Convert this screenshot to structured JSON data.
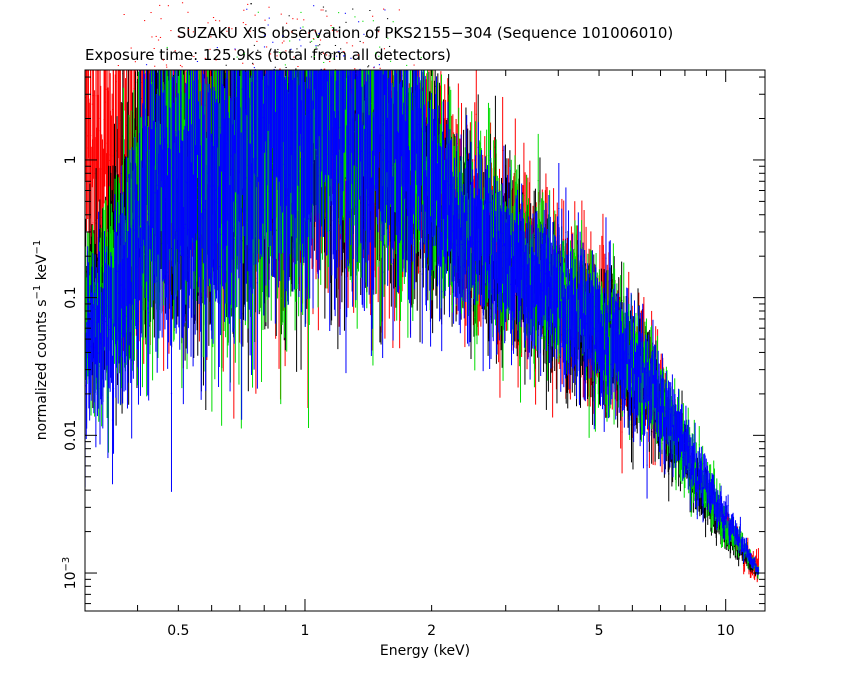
{
  "chart_data": {
    "type": "scatter",
    "title": "SUZAKU XIS observation of PKS2155−304 (Sequence 101006010)",
    "subtitle": "Exposure time: 125.9ks (total from all detectors)",
    "xlabel": "Energy (keV)",
    "ylabel_main": "normalized counts s",
    "ylabel_exp1": "−1",
    "ylabel_mid": " keV",
    "ylabel_exp2": "−1",
    "xscale": "log",
    "yscale": "log",
    "xlim": [
      0.3,
      12.4
    ],
    "ylim": [
      0.00053,
      4.5
    ],
    "xticks": [
      {
        "value": 0.5,
        "label": "0.5"
      },
      {
        "value": 1,
        "label": "1"
      },
      {
        "value": 2,
        "label": "2"
      },
      {
        "value": 5,
        "label": "5"
      },
      {
        "value": 10,
        "label": "10"
      }
    ],
    "yticks": [
      {
        "value": 1,
        "label": "1"
      },
      {
        "value": 0.1,
        "label": "0.1"
      },
      {
        "value": 0.01,
        "label": "0.01"
      }
    ],
    "ytick_exp": {
      "value": 0.001,
      "base": "10",
      "exp": "−3"
    },
    "series": [
      {
        "color": "#ff0000",
        "x": [
          0.3,
          0.33,
          0.36,
          0.4,
          0.45,
          0.5,
          0.55,
          0.6,
          0.7,
          0.8,
          0.9,
          1.0,
          1.2,
          1.5,
          1.8,
          2.0,
          2.3,
          2.7,
          3.0,
          3.5,
          4.0,
          5.0,
          6.0,
          7.0,
          8.0,
          9.0,
          10.0,
          11.0,
          12.0
        ],
        "y": [
          1.15,
          0.62,
          0.8,
          1.5,
          2.6,
          3.2,
          2.7,
          2.5,
          3.3,
          3.7,
          3.5,
          3.2,
          2.5,
          1.7,
          1.15,
          0.85,
          0.5,
          0.32,
          0.25,
          0.16,
          0.11,
          0.065,
          0.035,
          0.018,
          0.008,
          0.004,
          0.0025,
          0.0015,
          0.001
        ],
        "noise": [
          0.08,
          0.08,
          0.06,
          0.04,
          0.03,
          0.03,
          0.03,
          0.03,
          0.03,
          0.03,
          0.03,
          0.03,
          0.04,
          0.06,
          0.1,
          0.13,
          0.16,
          0.18,
          0.2,
          0.2,
          0.22,
          0.25,
          0.3,
          0.4,
          0.7,
          1.0,
          1.2,
          1.3,
          1.4
        ]
      },
      {
        "color": "#000000",
        "x": [
          0.3,
          0.33,
          0.36,
          0.4,
          0.45,
          0.48,
          0.5,
          0.53,
          0.56,
          0.6,
          0.7,
          0.8,
          0.9,
          1.0,
          1.2,
          1.5,
          1.8,
          2.0,
          2.3,
          2.7,
          3.0,
          3.5,
          4.0,
          5.0,
          6.0,
          7.0,
          8.0,
          9.0,
          10.0,
          11.0,
          12.0
        ],
        "y": [
          0.09,
          0.12,
          0.22,
          0.45,
          1.0,
          1.5,
          1.4,
          1.0,
          0.65,
          0.8,
          1.2,
          1.7,
          2.1,
          2.3,
          2.1,
          1.5,
          1.0,
          0.65,
          0.35,
          0.22,
          0.18,
          0.12,
          0.09,
          0.055,
          0.03,
          0.015,
          0.007,
          0.0035,
          0.002,
          0.0014,
          0.001
        ],
        "noise": [
          0.2,
          0.18,
          0.12,
          0.08,
          0.06,
          0.05,
          0.05,
          0.05,
          0.06,
          0.05,
          0.04,
          0.04,
          0.04,
          0.04,
          0.05,
          0.07,
          0.1,
          0.14,
          0.2,
          0.2,
          0.22,
          0.24,
          0.25,
          0.28,
          0.32,
          0.4,
          0.5,
          0.6,
          0.7,
          0.8,
          0.9
        ]
      },
      {
        "color": "#00dd00",
        "x": [
          0.3,
          0.33,
          0.36,
          0.4,
          0.45,
          0.48,
          0.5,
          0.53,
          0.56,
          0.6,
          0.7,
          0.8,
          0.9,
          1.0,
          1.2,
          1.5,
          1.8,
          2.0,
          2.3,
          2.7,
          3.0,
          3.5,
          4.0,
          5.0,
          6.0,
          7.0,
          8.0,
          9.0,
          10.0,
          11.0,
          12.0
        ],
        "y": [
          0.06,
          0.08,
          0.16,
          0.35,
          0.8,
          1.2,
          1.15,
          0.85,
          0.6,
          0.75,
          1.1,
          1.6,
          2.0,
          2.2,
          2.0,
          1.45,
          1.0,
          0.6,
          0.38,
          0.25,
          0.2,
          0.14,
          0.1,
          0.06,
          0.035,
          0.018,
          0.008,
          0.004,
          0.0022,
          0.0015,
          0.001
        ],
        "noise": [
          0.2,
          0.18,
          0.12,
          0.08,
          0.06,
          0.05,
          0.05,
          0.05,
          0.06,
          0.05,
          0.04,
          0.04,
          0.04,
          0.04,
          0.05,
          0.07,
          0.1,
          0.14,
          0.2,
          0.2,
          0.22,
          0.24,
          0.25,
          0.28,
          0.32,
          0.4,
          0.5,
          0.6,
          0.7,
          0.8,
          0.9
        ]
      },
      {
        "color": "#0000ff",
        "x": [
          0.3,
          0.33,
          0.36,
          0.4,
          0.45,
          0.48,
          0.5,
          0.53,
          0.56,
          0.6,
          0.7,
          0.8,
          0.9,
          1.0,
          1.2,
          1.5,
          1.8,
          2.0,
          2.3,
          2.7,
          3.0,
          3.5,
          4.0,
          5.0,
          6.0,
          7.0,
          8.0,
          9.0,
          10.0,
          11.0,
          12.0
        ],
        "y": [
          0.04,
          0.05,
          0.1,
          0.25,
          0.65,
          0.85,
          0.8,
          0.6,
          0.4,
          0.6,
          0.95,
          1.45,
          1.8,
          2.0,
          1.9,
          1.4,
          1.0,
          0.58,
          0.36,
          0.24,
          0.19,
          0.13,
          0.1,
          0.058,
          0.033,
          0.017,
          0.008,
          0.0045,
          0.0025,
          0.0016,
          0.001
        ],
        "noise": [
          0.2,
          0.18,
          0.12,
          0.08,
          0.06,
          0.05,
          0.05,
          0.05,
          0.06,
          0.05,
          0.04,
          0.04,
          0.04,
          0.04,
          0.05,
          0.07,
          0.1,
          0.14,
          0.2,
          0.2,
          0.22,
          0.24,
          0.25,
          0.28,
          0.32,
          0.4,
          0.5,
          0.6,
          0.7,
          0.8,
          0.9
        ]
      }
    ]
  }
}
